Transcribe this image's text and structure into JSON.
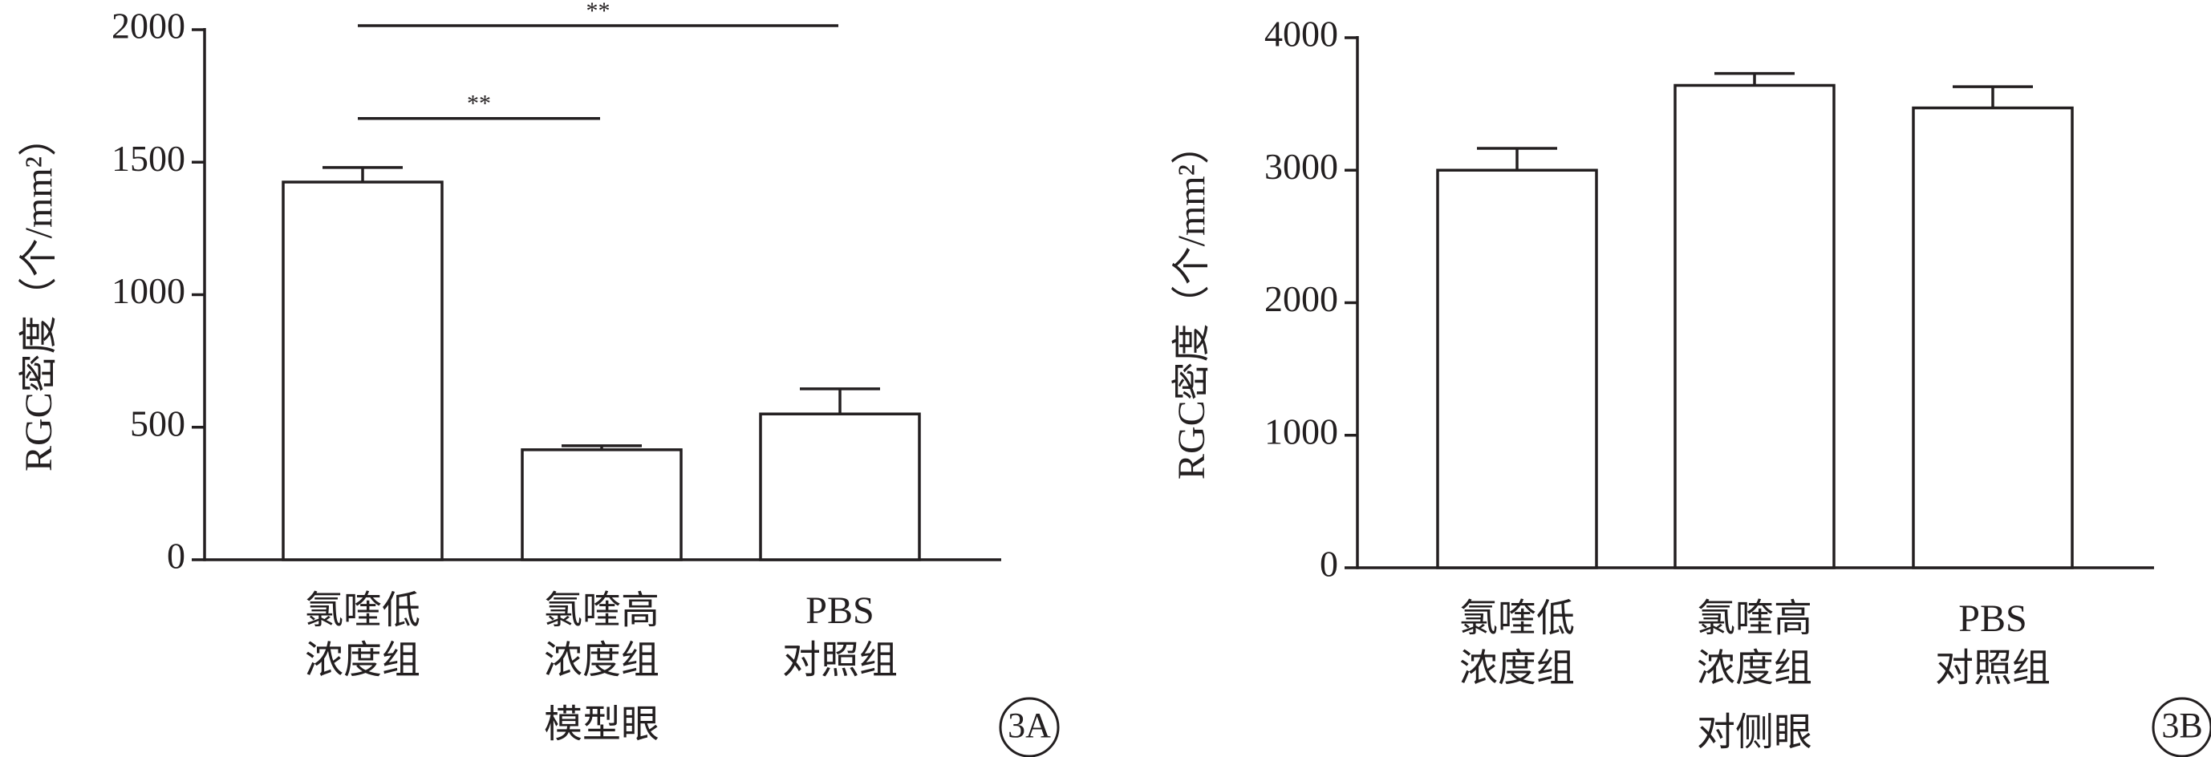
{
  "chart_data": [
    {
      "type": "bar",
      "ylabel": "RGC密度（个/mm²）",
      "xlabel": "模型眼",
      "panel": "3A",
      "categories": [
        [
          "氯喹低",
          "浓度组"
        ],
        [
          "氯喹高",
          "浓度组"
        ],
        [
          "PBS",
          "对照组"
        ]
      ],
      "values": [
        1425,
        415,
        550
      ],
      "errors": [
        55,
        15,
        95
      ],
      "color": "#ffffff",
      "ylim": [
        0,
        2000
      ],
      "yticks": [
        0,
        500,
        1000,
        1500,
        2000
      ],
      "annotations": [
        {
          "text": "**",
          "from": 0,
          "to": 2,
          "y": 2015
        },
        {
          "text": "**",
          "from": 0,
          "to": 1,
          "y": 1665
        }
      ]
    },
    {
      "type": "bar",
      "ylabel": "RGC密度（个/mm²）",
      "xlabel": "对侧眼",
      "panel": "3B",
      "categories": [
        [
          "氯喹低",
          "浓度组"
        ],
        [
          "氯喹高",
          "浓度组"
        ],
        [
          "PBS",
          "对照组"
        ]
      ],
      "values": [
        3000,
        3640,
        3470
      ],
      "errors": [
        165,
        90,
        160
      ],
      "color": "#ffffff",
      "ylim": [
        0,
        4000
      ],
      "yticks": [
        0,
        1000,
        2000,
        3000,
        4000
      ]
    }
  ]
}
